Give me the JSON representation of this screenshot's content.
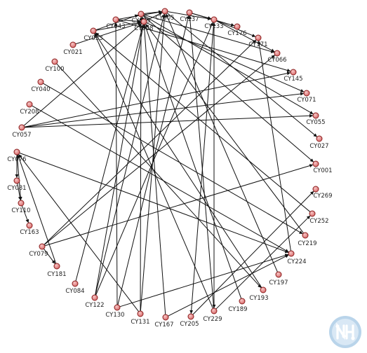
{
  "graph": {
    "node_fill": "#e88a8a",
    "node_stroke": "#8a1f1f",
    "edge_color": "#111111",
    "nodes": [
      {
        "id": "n0",
        "label": "CY005"
      },
      {
        "id": "n1",
        "label": "CY137"
      },
      {
        "id": "n2",
        "label": "CY133"
      },
      {
        "id": "n3",
        "label": "CY176"
      },
      {
        "id": "n4",
        "label": "CY171"
      },
      {
        "id": "n5",
        "label": "CY066"
      },
      {
        "id": "n6",
        "label": "CY145"
      },
      {
        "id": "n7",
        "label": "CY071"
      },
      {
        "id": "n8",
        "label": "CY055"
      },
      {
        "id": "n9",
        "label": "CY027"
      },
      {
        "id": "n10",
        "label": "CY001"
      },
      {
        "id": "n11",
        "label": "CY269"
      },
      {
        "id": "n12",
        "label": "CY252"
      },
      {
        "id": "n13",
        "label": "CY219"
      },
      {
        "id": "n14",
        "label": "CY224"
      },
      {
        "id": "n15",
        "label": "CY197"
      },
      {
        "id": "n16",
        "label": "CY193"
      },
      {
        "id": "n17",
        "label": "CY189"
      },
      {
        "id": "n18",
        "label": "CY229"
      },
      {
        "id": "n19",
        "label": "CY205"
      },
      {
        "id": "n20",
        "label": "CY167"
      },
      {
        "id": "n21",
        "label": "CY131"
      },
      {
        "id": "n22",
        "label": "CY130"
      },
      {
        "id": "n23",
        "label": "CY122"
      },
      {
        "id": "n24",
        "label": "CY084"
      },
      {
        "id": "n25",
        "label": "CY181"
      },
      {
        "id": "n26",
        "label": "CY079"
      },
      {
        "id": "n27",
        "label": "CY163"
      },
      {
        "id": "n28",
        "label": "CY110"
      },
      {
        "id": "n29",
        "label": "CY081"
      },
      {
        "id": "n30",
        "label": "CY076"
      },
      {
        "id": "n31",
        "label": "CY057"
      },
      {
        "id": "n32",
        "label": "CY208"
      },
      {
        "id": "n33",
        "label": "CY040"
      },
      {
        "id": "n34",
        "label": "CY100"
      },
      {
        "id": "n35",
        "label": "CY021"
      },
      {
        "id": "n36",
        "label": "CY053"
      },
      {
        "id": "n37",
        "label": "CY043"
      },
      {
        "id": "n38",
        "label": "CY025"
      },
      {
        "id": "n39",
        "label": "CY008"
      }
    ],
    "edges": [
      [
        "n36",
        "n38"
      ],
      [
        "n36",
        "n39"
      ],
      [
        "n37",
        "n39"
      ],
      [
        "n37",
        "n0"
      ],
      [
        "n38",
        "n0"
      ],
      [
        "n35",
        "n39"
      ],
      [
        "n1",
        "n2"
      ],
      [
        "n1",
        "n3"
      ],
      [
        "n39",
        "n0"
      ],
      [
        "n0",
        "n2"
      ],
      [
        "n2",
        "n4"
      ],
      [
        "n2",
        "n5"
      ],
      [
        "n38",
        "n5"
      ],
      [
        "n38",
        "n8"
      ],
      [
        "n38",
        "n10"
      ],
      [
        "n37",
        "n6"
      ],
      [
        "n39",
        "n7"
      ],
      [
        "n0",
        "n9"
      ],
      [
        "n31",
        "n6"
      ],
      [
        "n31",
        "n7"
      ],
      [
        "n31",
        "n8"
      ],
      [
        "n31",
        "n39"
      ],
      [
        "n32",
        "n14"
      ],
      [
        "n30",
        "n14"
      ],
      [
        "n30",
        "n28"
      ],
      [
        "n30",
        "n29"
      ],
      [
        "n29",
        "n28"
      ],
      [
        "n28",
        "n27"
      ],
      [
        "n26",
        "n25"
      ],
      [
        "n26",
        "n10"
      ],
      [
        "n26",
        "n5"
      ],
      [
        "n25",
        "n30"
      ],
      [
        "n24",
        "n39"
      ],
      [
        "n23",
        "n0"
      ],
      [
        "n23",
        "n2"
      ],
      [
        "n22",
        "n37"
      ],
      [
        "n22",
        "n14"
      ],
      [
        "n21",
        "n38"
      ],
      [
        "n21",
        "n30"
      ],
      [
        "n20",
        "n39"
      ],
      [
        "n20",
        "n14"
      ],
      [
        "n19",
        "n11"
      ],
      [
        "n18",
        "n2"
      ],
      [
        "n18",
        "n1"
      ],
      [
        "n18",
        "n12"
      ],
      [
        "n18",
        "n36"
      ],
      [
        "n17",
        "n38"
      ],
      [
        "n16",
        "n36"
      ],
      [
        "n15",
        "n0"
      ],
      [
        "n14",
        "n4"
      ],
      [
        "n13",
        "n39"
      ],
      [
        "n12",
        "n36"
      ],
      [
        "n34",
        "n16"
      ],
      [
        "n33",
        "n13"
      ],
      [
        "n2",
        "n19"
      ],
      [
        "n2",
        "n18"
      ],
      [
        "n26",
        "n4"
      ],
      [
        "n22",
        "n1"
      ],
      [
        "n23",
        "n39"
      ],
      [
        "n21",
        "n0"
      ]
    ]
  },
  "watermark": {
    "icon": "node-network-logo-icon",
    "ring_color": "#b9d4ea",
    "disc_color": "#d9e8f5",
    "mark_color": "#ffffff"
  }
}
